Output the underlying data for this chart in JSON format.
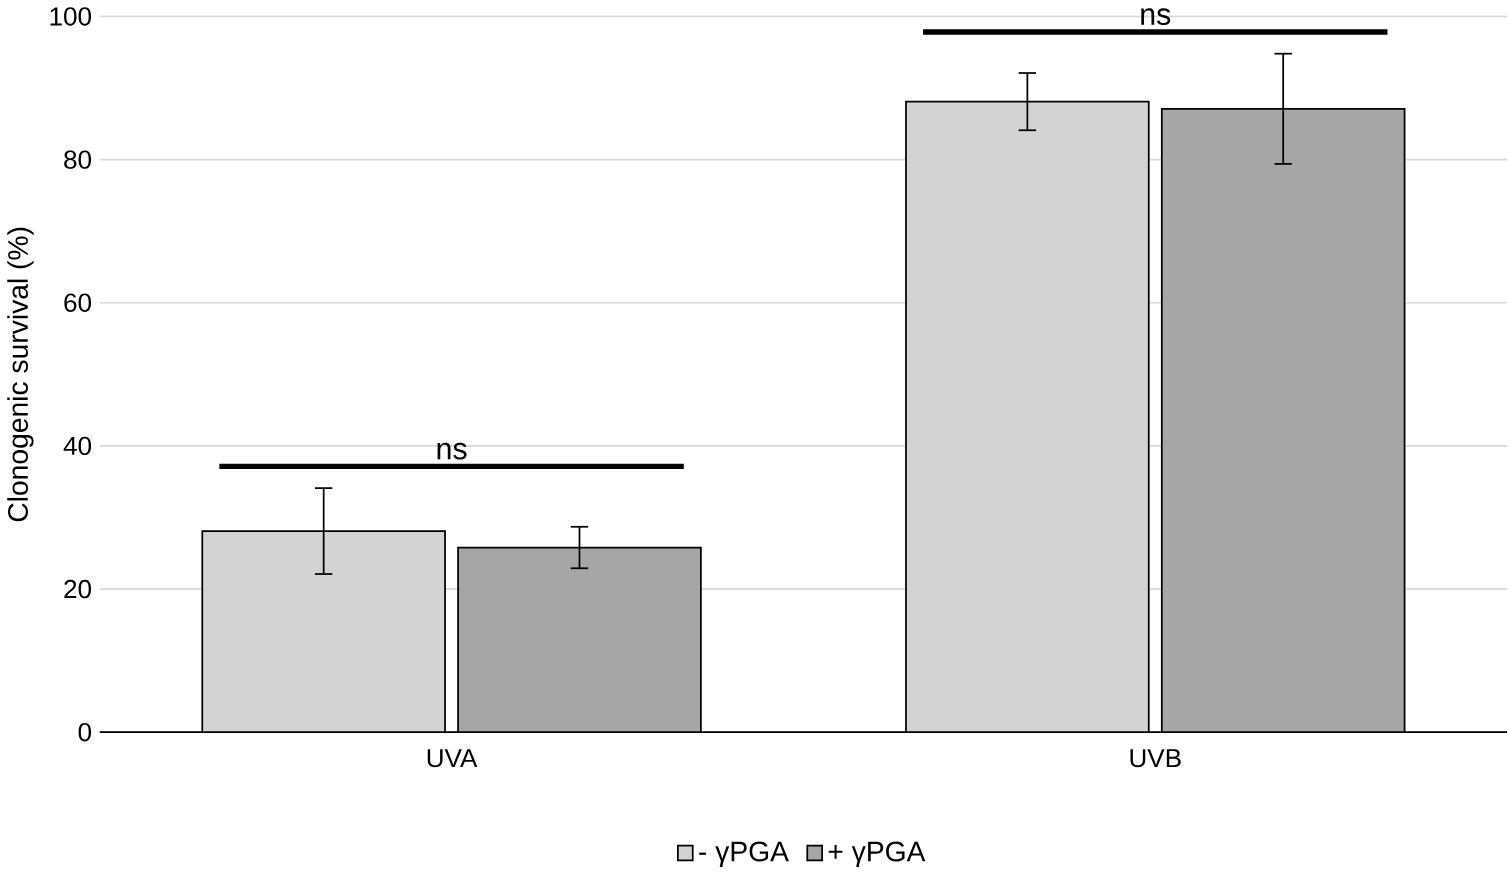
{
  "chart_data": {
    "type": "bar",
    "ylabel": "Clonogenic survival (%)",
    "categories": [
      "UVA",
      "UVB"
    ],
    "series": [
      {
        "name": "- γPGA",
        "color": "#d3d3d3",
        "values": [
          28.1,
          88.1
        ],
        "errors": [
          6,
          4
        ]
      },
      {
        "name": "+ γPGA",
        "color": "#a6a6a6",
        "values": [
          25.8,
          87.1
        ],
        "errors": [
          2.9,
          7.7
        ]
      }
    ],
    "ylim": [
      0,
      100
    ],
    "yticks": [
      0,
      20,
      40,
      60,
      80,
      100
    ],
    "grid": "y",
    "legend": "bottom",
    "annotations": [
      "ns",
      "ns"
    ]
  }
}
